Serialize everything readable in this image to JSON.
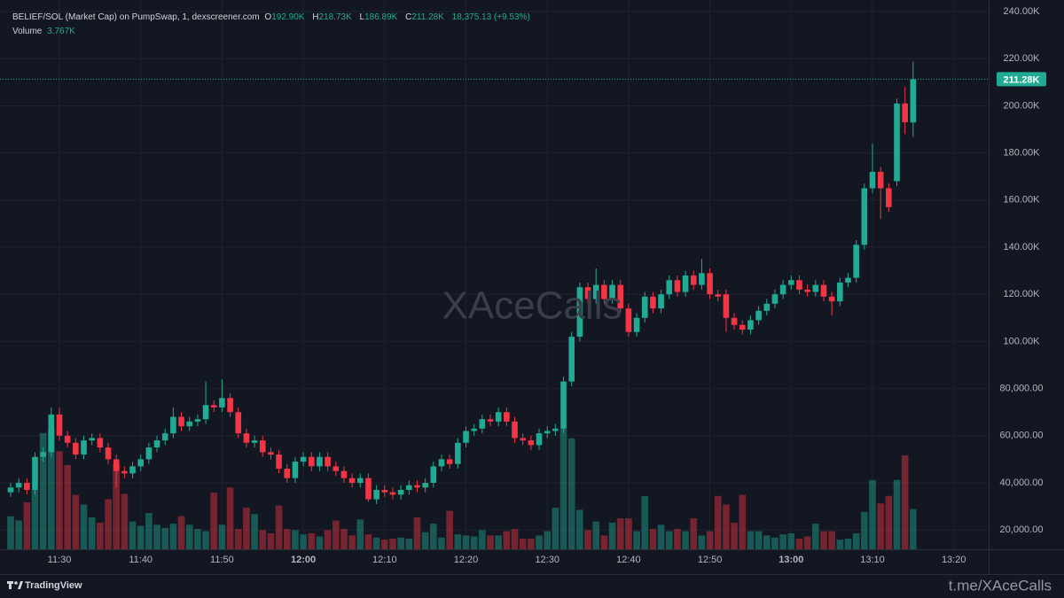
{
  "chart_data": {
    "type": "candlestick",
    "symbol": "BELIEF/SOL (Market Cap) on PumpSwap, 1, dexscreener.com",
    "ohlc_letters": [
      "O",
      "H",
      "L",
      "C"
    ],
    "ohlc_value_labels": [
      "192.90K",
      "218.73K",
      "186.89K",
      "211.28K"
    ],
    "change_label": "18,375.13 (+9.53%)",
    "volume_title": "Volume",
    "volume_value_label": "3.767K",
    "last_price_label": "211.28K",
    "watermark": "XAceCalls",
    "branding": "TradingView",
    "footer_link": "t.me/XAceCalls",
    "up_color": "#22ab94",
    "down_color": "#f23645",
    "grid": true,
    "categories": [
      null,
      null,
      null,
      null,
      null,
      null,
      "11:30",
      null,
      null,
      null,
      null,
      null,
      null,
      null,
      null,
      null,
      "11:40",
      null,
      null,
      null,
      null,
      null,
      null,
      null,
      null,
      null,
      "11:50",
      null,
      null,
      null,
      null,
      null,
      null,
      null,
      null,
      null,
      "12:00",
      null,
      null,
      null,
      null,
      null,
      null,
      null,
      null,
      null,
      "12:10",
      null,
      null,
      null,
      null,
      null,
      null,
      null,
      null,
      null,
      "12:20",
      null,
      null,
      null,
      null,
      null,
      null,
      null,
      null,
      null,
      "12:30",
      null,
      null,
      null,
      null,
      null,
      null,
      null,
      null,
      null,
      "12:40",
      null,
      null,
      null,
      null,
      null,
      null,
      null,
      null,
      null,
      "12:50",
      null,
      null,
      null,
      null,
      null,
      null,
      null,
      null,
      null,
      "13:00",
      null,
      null,
      null,
      null,
      null,
      null,
      null,
      null,
      null,
      "13:10",
      null,
      null,
      null,
      null,
      null,
      null,
      null,
      null,
      null,
      "13:20"
    ],
    "open": [
      36000,
      38000,
      40000,
      37000,
      51000,
      53000,
      69000,
      60000,
      57000,
      52000,
      58000,
      59000,
      55000,
      50000,
      45000,
      44000,
      47000,
      50000,
      55000,
      58000,
      61000,
      68000,
      64000,
      66000,
      67000,
      73000,
      72000,
      76000,
      70000,
      61000,
      57000,
      58000,
      53000,
      52000,
      46000,
      42000,
      49000,
      51000,
      47000,
      51000,
      47000,
      45000,
      42000,
      40000,
      42000,
      33000,
      37000,
      36000,
      35000,
      37000,
      39000,
      38000,
      40000,
      47000,
      50000,
      48000,
      57000,
      62000,
      63000,
      67000,
      66000,
      70000,
      66000,
      59000,
      58000,
      56000,
      61000,
      62000,
      63000,
      83000,
      102000,
      123000,
      118000,
      124000,
      118000,
      124000,
      114000,
      104000,
      110000,
      119000,
      114000,
      120000,
      126000,
      121000,
      128000,
      124000,
      129000,
      120000,
      120000,
      110000,
      107000,
      105000,
      109000,
      113000,
      116000,
      120000,
      124000,
      126000,
      122000,
      121000,
      124000,
      119000,
      117000,
      125000,
      127000,
      141000,
      165000,
      172000,
      165000,
      168000,
      201000,
      192900,
      null,
      null,
      null,
      null,
      null
    ],
    "high": [
      40000,
      42000,
      42000,
      53000,
      55000,
      72000,
      72000,
      62000,
      59000,
      60000,
      61000,
      61000,
      57000,
      52000,
      47000,
      49000,
      52000,
      57000,
      60000,
      63000,
      72000,
      70000,
      68000,
      69000,
      83000,
      75000,
      84000,
      78000,
      72000,
      63000,
      60000,
      60000,
      55000,
      54000,
      48000,
      51000,
      53000,
      53000,
      53000,
      53000,
      49000,
      47000,
      44000,
      44000,
      44000,
      39000,
      39000,
      38000,
      39000,
      41000,
      41000,
      42000,
      49000,
      52000,
      52000,
      59000,
      64000,
      65000,
      69000,
      69000,
      72000,
      72000,
      68000,
      61000,
      60000,
      63000,
      64000,
      65000,
      85000,
      104000,
      125000,
      125000,
      131000,
      126000,
      126000,
      126000,
      116000,
      112000,
      121000,
      121000,
      122000,
      128000,
      128000,
      130000,
      130000,
      135000,
      131000,
      122000,
      122000,
      112000,
      109000,
      111000,
      115000,
      118000,
      122000,
      126000,
      128000,
      128000,
      124000,
      126000,
      126000,
      121000,
      127000,
      129000,
      143000,
      167000,
      184000,
      174000,
      167000,
      203000,
      208000,
      218730,
      null,
      null,
      null,
      null,
      null
    ],
    "low": [
      34000,
      36000,
      35000,
      35000,
      49000,
      51000,
      58000,
      55000,
      50000,
      50000,
      56000,
      53000,
      48000,
      38000,
      42000,
      42000,
      45000,
      48000,
      53000,
      56000,
      59000,
      62000,
      62000,
      64000,
      65000,
      70000,
      70000,
      68000,
      59000,
      55000,
      55000,
      51000,
      50000,
      44000,
      40000,
      40000,
      47000,
      45000,
      45000,
      45000,
      43000,
      40000,
      38000,
      38000,
      32000,
      31000,
      34000,
      33000,
      33000,
      35000,
      36000,
      36000,
      38000,
      45000,
      46000,
      46000,
      55000,
      60000,
      61000,
      64000,
      64000,
      64000,
      57000,
      56000,
      54000,
      54000,
      59000,
      60000,
      61000,
      81000,
      100000,
      116000,
      116000,
      116000,
      116000,
      112000,
      102000,
      102000,
      108000,
      112000,
      112000,
      118000,
      119000,
      119000,
      122000,
      122000,
      118000,
      117000,
      104000,
      105000,
      103000,
      103000,
      107000,
      111000,
      114000,
      118000,
      122000,
      120000,
      119000,
      119000,
      117000,
      111000,
      115000,
      123000,
      125000,
      139000,
      163000,
      152000,
      155000,
      166000,
      188000,
      186890,
      null,
      null,
      null,
      null,
      null
    ],
    "close": [
      38000,
      40000,
      37000,
      51000,
      53000,
      69000,
      60000,
      57000,
      52000,
      58000,
      59000,
      55000,
      50000,
      45000,
      44000,
      47000,
      50000,
      55000,
      58000,
      61000,
      68000,
      64000,
      66000,
      67000,
      73000,
      72000,
      76000,
      70000,
      61000,
      57000,
      58000,
      53000,
      52000,
      46000,
      42000,
      49000,
      51000,
      47000,
      51000,
      47000,
      45000,
      42000,
      40000,
      42000,
      33000,
      37000,
      36000,
      35000,
      37000,
      39000,
      38000,
      40000,
      47000,
      50000,
      48000,
      57000,
      62000,
      63000,
      67000,
      66000,
      70000,
      66000,
      59000,
      58000,
      56000,
      61000,
      62000,
      63000,
      83000,
      102000,
      123000,
      118000,
      124000,
      118000,
      124000,
      114000,
      104000,
      110000,
      119000,
      114000,
      120000,
      126000,
      121000,
      128000,
      124000,
      129000,
      120000,
      119000,
      110000,
      107000,
      105000,
      109000,
      113000,
      116000,
      120000,
      124000,
      126000,
      122000,
      121000,
      124000,
      119000,
      117000,
      125000,
      127000,
      141000,
      165000,
      172000,
      165000,
      157000,
      201000,
      193000,
      211280,
      null,
      null,
      null,
      null,
      null
    ],
    "volume": [
      3100,
      2700,
      4400,
      5600,
      10900,
      11300,
      9200,
      7900,
      5100,
      4200,
      3000,
      2500,
      4700,
      8000,
      5200,
      2600,
      2200,
      3400,
      2300,
      2000,
      2400,
      3100,
      2300,
      1900,
      1700,
      5300,
      2300,
      5800,
      1900,
      3900,
      3300,
      1800,
      1500,
      4100,
      1900,
      1800,
      1400,
      1500,
      1200,
      1800,
      2700,
      1900,
      1300,
      2800,
      1400,
      1100,
      900,
      1000,
      1100,
      1000,
      3000,
      1600,
      2400,
      1100,
      3600,
      1400,
      1300,
      1200,
      1800,
      1300,
      1300,
      1700,
      1900,
      1000,
      1000,
      1300,
      1700,
      3900,
      11300,
      10400,
      3700,
      1800,
      2600,
      1300,
      2500,
      2900,
      2900,
      1700,
      5000,
      1900,
      2300,
      1700,
      1900,
      1700,
      2900,
      1300,
      1700,
      5000,
      4200,
      2500,
      5100,
      1700,
      1700,
      1300,
      1100,
      1400,
      1500,
      1000,
      1200,
      2400,
      1700,
      1700,
      900,
      1000,
      1500,
      3500,
      6500,
      4300,
      5000,
      6500,
      8800,
      3767,
      null,
      null,
      null,
      null,
      null
    ],
    "ylim": [
      11800,
      244900
    ],
    "yticks": [
      {
        "value": 240000,
        "label": "240.00K"
      },
      {
        "value": 220000,
        "label": "220.00K"
      },
      {
        "value": 200000,
        "label": "200.00K"
      },
      {
        "value": 180000,
        "label": "180.00K"
      },
      {
        "value": 160000,
        "label": "160.00K"
      },
      {
        "value": 140000,
        "label": "140.00K"
      },
      {
        "value": 120000,
        "label": "120.00K"
      },
      {
        "value": 100000,
        "label": "100.00K"
      },
      {
        "value": 80000,
        "label": "80,000.00"
      },
      {
        "value": 60000,
        "label": "60,000.00"
      },
      {
        "value": 40000,
        "label": "40,000.00"
      },
      {
        "value": 20000,
        "label": "20,000.00"
      }
    ]
  }
}
